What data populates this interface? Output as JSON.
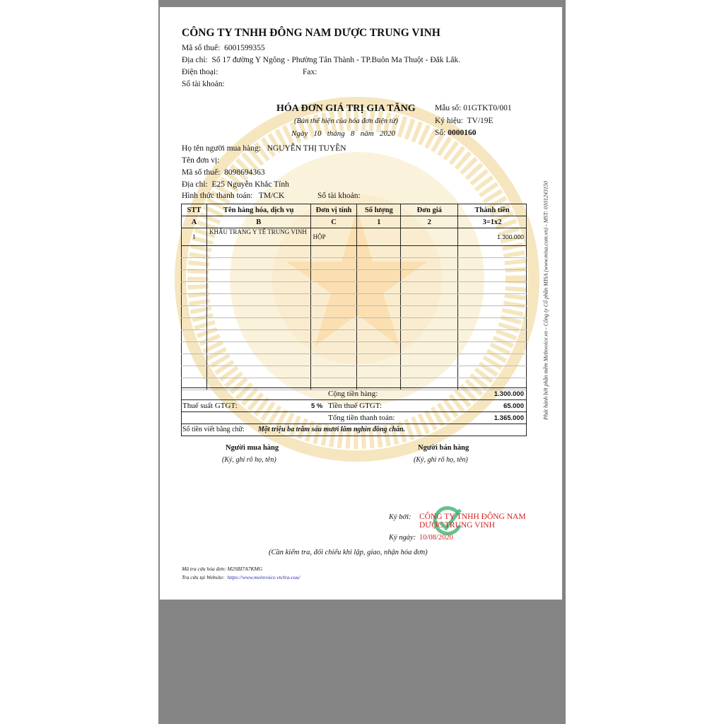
{
  "seller": {
    "name": "CÔNG TY TNHH ĐÔNG NAM DƯỢC TRUNG VINH",
    "tax_label": "Mã số thuế:",
    "tax": "6001599355",
    "addr_label": "Địa chỉ:",
    "addr": "Số 17 đường Y Ngông - Phường Tân Thành - TP.Buôn Ma Thuột - Đắk Lắk.",
    "phone_label": "Điện thoại:",
    "fax_label": "Fax:",
    "account_label": "Số tài khoản:"
  },
  "invoice": {
    "title": "HÓA ĐƠN GIÁ TRỊ GIA TĂNG",
    "subtitle": "(Bản thể hiện của hóa đơn điện tử)",
    "date": "Ngày   10   tháng   8   năm   2020",
    "form_label": "Mẫu số:",
    "form": "01GTKT0/001",
    "symbol_label": "Ký hiệu:",
    "symbol": "TV/19E",
    "no_label": "Số:",
    "no": "0000160"
  },
  "buyer": {
    "name_label": "Họ tên người mua hàng:",
    "name": "NGUYỄN THỊ TUYỀN",
    "unit_label": "Tên đơn vị:",
    "tax_label": "Mã số thuế:",
    "tax": "8098694363",
    "addr_label": "Địa chỉ:",
    "addr": "E25 Nguyễn Khắc Tính",
    "pay_label": "Hình thức thanh toán:",
    "pay": "TM/CK",
    "account_label": "Số tài khoản:"
  },
  "table": {
    "headers": [
      "STT",
      "Tên hàng hóa, dịch vụ",
      "Đơn vị tính",
      "Số lượng",
      "Đơn giá",
      "Thành tiền"
    ],
    "codes": [
      "A",
      "B",
      "C",
      "1",
      "2",
      "3=1x2"
    ],
    "rows": [
      {
        "stt": "1",
        "name": "KHẨU TRANG Y TẾ TRUNG VINH",
        "unit": "HỘP",
        "qty": "",
        "price": "",
        "amount": "1.300.000"
      }
    ]
  },
  "summary": {
    "subtotal_label": "Cộng tiền hàng:",
    "subtotal": "1.300.000",
    "rate_label": "Thuế suất GTGT:",
    "rate": "5 %",
    "tax_label": "Tiền thuế GTGT:",
    "tax": "65.000",
    "total_label": "Tổng tiền thanh toán:",
    "total": "1.365.000",
    "words_label": "Số tiền viết bằng chữ:",
    "words": "Một triệu ba trăm sáu mươi lăm nghìn đồng chẵn."
  },
  "signatures": {
    "buyer": "Người mua hàng",
    "seller": "Người bán hàng",
    "hint": "(Ký, ghi rõ họ, tên)",
    "signed_by_label": "Ký bởi:",
    "signed_by_1": "CÔNG TY TNHH ĐÔNG NAM",
    "signed_by_2": "DƯỢC TRUNG VINH",
    "signed_date_label": "Ký ngày:",
    "signed_date": "10/08/2020"
  },
  "note": "(Cần kiểm tra, đối chiếu khi lập, giao, nhận hóa đơn)",
  "lookup": {
    "code_label": "Mã tra cứu hóa đơn:",
    "code": "M2SBI7A7KMG",
    "site_label": "Tra cứu tại Website:",
    "site": "https://www.meinvoice.vn/tra-cuu/"
  },
  "side_note": "Phát hành bởi phần mềm MeInvoice.vn - Công ty Cổ phần MISA (www.misa.com.vn) - MST: 0101243150",
  "colors": {
    "watermark": "#e8b84a",
    "signature": "#d02020",
    "check": "#3cb371",
    "link": "#2a2aa8"
  }
}
